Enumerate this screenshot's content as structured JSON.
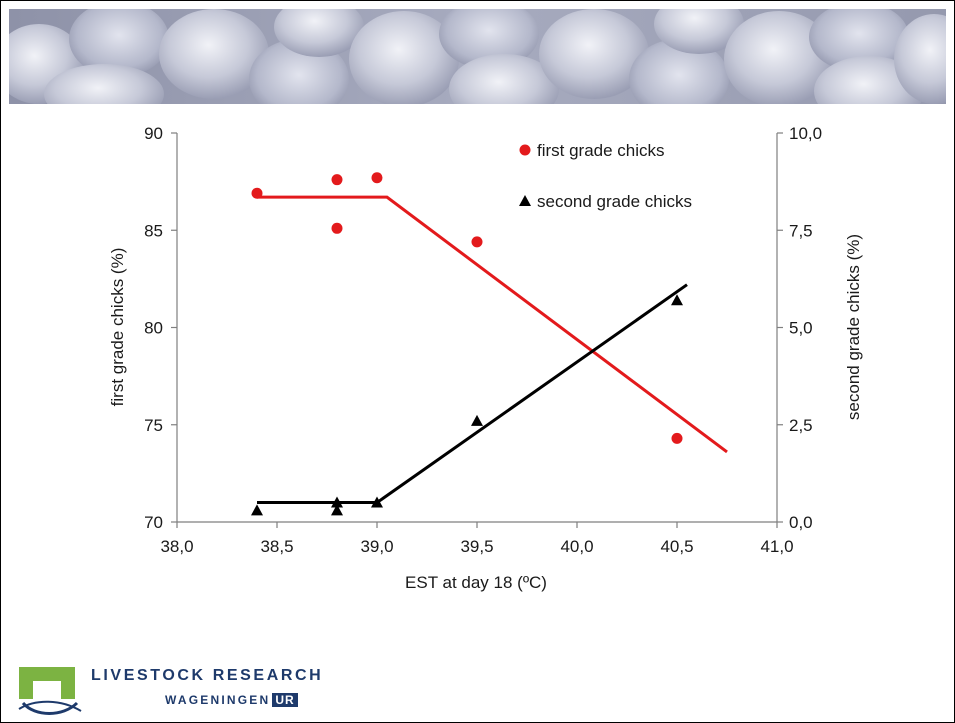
{
  "banner": {
    "icon": "chicks-photo"
  },
  "colors": {
    "first_series": "#e31a1c",
    "second_series": "#000000",
    "logo_blue": "#1e3a6b",
    "logo_green": "#7cb342"
  },
  "chart_data": {
    "type": "scatter",
    "title": "",
    "xlabel": "EST at day 18 (ºC)",
    "ylabel": "first grade chicks (%)",
    "ylabel_right": "second grade chicks (%)",
    "xlim": [
      38.0,
      41.0
    ],
    "ylim": [
      70,
      90
    ],
    "ylim_right": [
      0,
      10
    ],
    "x_ticks": [
      "38,0",
      "38,5",
      "39,0",
      "39,5",
      "40,0",
      "40,5",
      "41,0"
    ],
    "y_ticks": [
      "70",
      "75",
      "80",
      "85",
      "90"
    ],
    "y_ticks_right": [
      "0,0",
      "2,5",
      "5,0",
      "7,5",
      "10,0"
    ],
    "legend_position": "top-right",
    "series": [
      {
        "name": "first grade chicks",
        "axis": "left",
        "marker": "circle",
        "color": "#e31a1c",
        "points": [
          {
            "x": 38.4,
            "y": 86.9
          },
          {
            "x": 38.8,
            "y": 87.6
          },
          {
            "x": 38.8,
            "y": 85.1
          },
          {
            "x": 39.0,
            "y": 87.7
          },
          {
            "x": 39.5,
            "y": 84.4
          },
          {
            "x": 40.5,
            "y": 74.3
          }
        ],
        "fit_line": [
          {
            "x": 38.4,
            "y": 86.7
          },
          {
            "x": 39.05,
            "y": 86.7
          },
          {
            "x": 40.75,
            "y": 73.6
          }
        ]
      },
      {
        "name": "second grade chicks",
        "axis": "right",
        "marker": "triangle",
        "color": "#000000",
        "points": [
          {
            "x": 38.4,
            "y": 0.3
          },
          {
            "x": 38.8,
            "y": 0.5
          },
          {
            "x": 38.8,
            "y": 0.3
          },
          {
            "x": 39.0,
            "y": 0.5
          },
          {
            "x": 39.5,
            "y": 2.6
          },
          {
            "x": 40.5,
            "y": 5.7
          }
        ],
        "fit_line": [
          {
            "x": 38.4,
            "y": 0.5
          },
          {
            "x": 39.0,
            "y": 0.5
          },
          {
            "x": 40.55,
            "y": 6.1
          }
        ]
      }
    ]
  },
  "logo": {
    "line1": "LIVESTOCK RESEARCH",
    "line2": "WAGENINGEN",
    "line2_badge": "UR"
  }
}
